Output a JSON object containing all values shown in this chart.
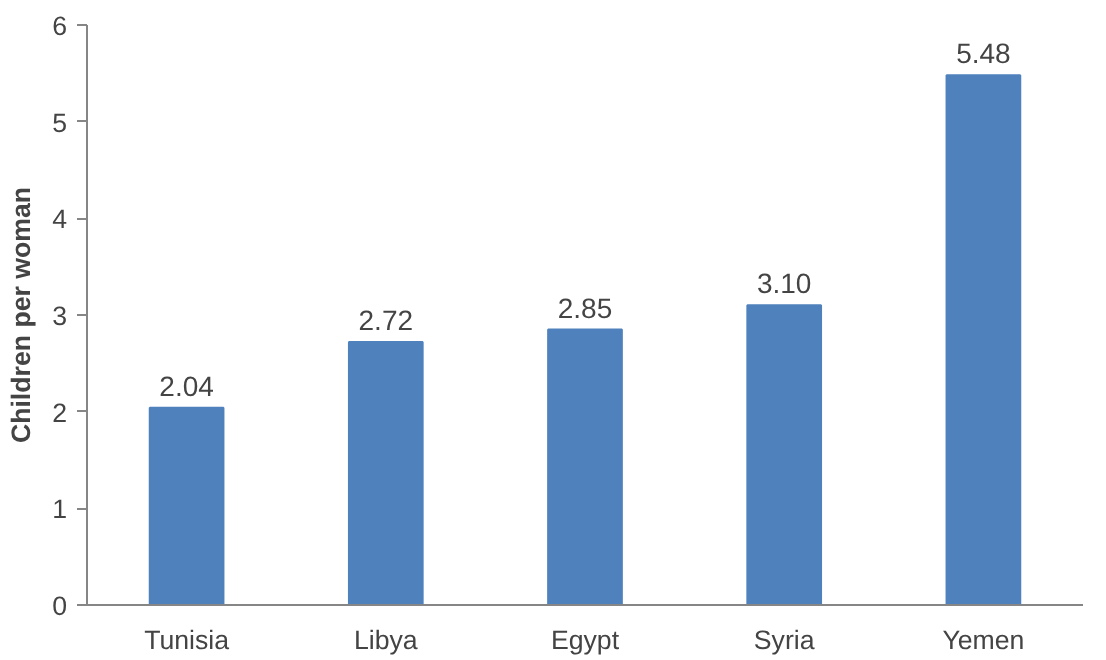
{
  "chart_data": {
    "type": "bar",
    "ylabel": "Children per woman",
    "categories": [
      "Tunisia",
      "Libya",
      "Egypt",
      "Syria",
      "Yemen"
    ],
    "values": [
      2.04,
      2.72,
      2.85,
      3.1,
      5.48
    ],
    "value_labels": [
      "2.04",
      "2.72",
      "2.85",
      "3.10",
      "5.48"
    ],
    "color": "#4f81bd",
    "ylim": [
      0,
      6
    ],
    "yticks": [
      0,
      1,
      2,
      3,
      4,
      5,
      6
    ],
    "grid": false
  }
}
